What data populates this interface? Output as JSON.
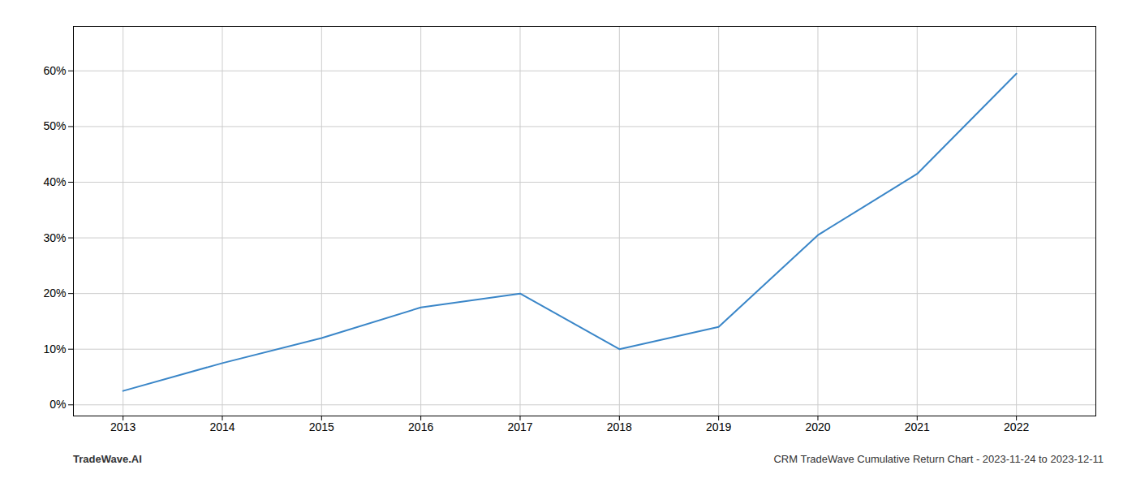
{
  "chart_data": {
    "type": "line",
    "x": [
      2013,
      2014,
      2015,
      2016,
      2017,
      2018,
      2019,
      2020,
      2021,
      2022
    ],
    "values": [
      2.5,
      7.5,
      12.0,
      17.5,
      20.0,
      10.0,
      14.0,
      30.5,
      41.5,
      59.5
    ],
    "color": "#3a86c8",
    "xlim": [
      2012.5,
      2022.8
    ],
    "ylim": [
      -2,
      68
    ],
    "xticks": [
      2013,
      2014,
      2015,
      2016,
      2017,
      2018,
      2019,
      2020,
      2021,
      2022
    ],
    "yticks": [
      {
        "value": 0,
        "label": "0%"
      },
      {
        "value": 10,
        "label": "10%"
      },
      {
        "value": 20,
        "label": "20%"
      },
      {
        "value": 30,
        "label": "30%"
      },
      {
        "value": 40,
        "label": "40%"
      },
      {
        "value": 50,
        "label": "50%"
      },
      {
        "value": 60,
        "label": "60%"
      }
    ],
    "grid": true,
    "annotations": [
      "TradeWave.AI",
      "CRM TradeWave Cumulative Return Chart - 2023-11-24 to 2023-12-11"
    ]
  }
}
